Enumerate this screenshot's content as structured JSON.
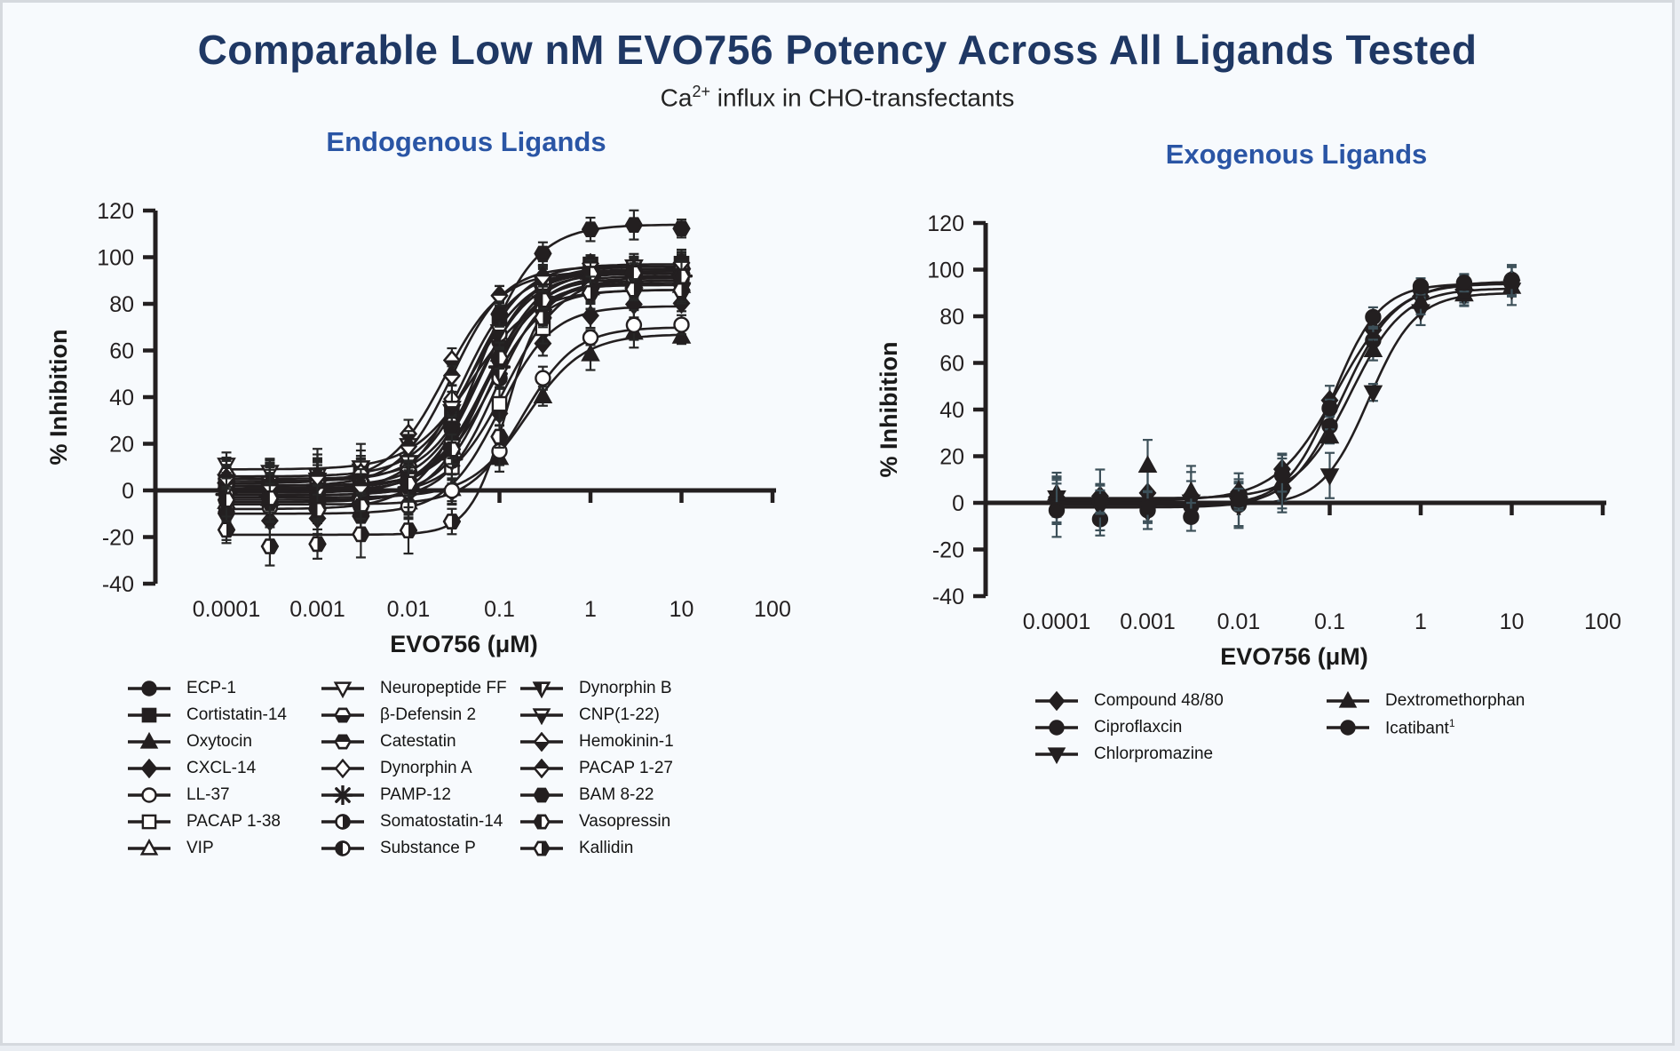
{
  "theme": {
    "background": "#f7fafd",
    "frame_border": "#d5d9de",
    "title_color": "#1f3864",
    "section_title_color": "#2a55a5",
    "curve_color": "#231f20",
    "axis_color": "#231f20",
    "tick_label_color": "#231f20"
  },
  "header": {
    "title": "Comparable Low nM EVO756 Potency Across All Ligands Tested",
    "subtitle_prefix": "Ca",
    "subtitle_sup": "2+",
    "subtitle_rest": " influx in CHO-transfectants"
  },
  "chart_data": [
    {
      "type": "line",
      "title": "Endogenous Ligands",
      "xlabel": "EVO756 (μM)",
      "ylabel": "% Inhibition",
      "x_scale": "log10",
      "xlim_log": [
        -4,
        2
      ],
      "ylim": [
        -40,
        120
      ],
      "y_ticks": [
        120,
        100,
        80,
        60,
        40,
        20,
        0,
        -20,
        -40
      ],
      "x_tick_labels": [
        "0.0001",
        "0.001",
        "0.01",
        "0.1",
        "1",
        "10",
        "100"
      ],
      "grid": false,
      "model": "4PL sigmoid: y = bottom + (top-bottom)/(1+(ec50/x)^hill); points at x_values_uM",
      "x_values_uM": [
        0.0001,
        0.0003,
        0.001,
        0.003,
        0.01,
        0.03,
        0.1,
        0.3,
        1,
        3,
        10
      ],
      "errbar_color": "#262626",
      "series": [
        {
          "name": "ECP-1",
          "marker": "circle_filled",
          "bottom": 2,
          "top": 95,
          "ec50_uM": 0.06,
          "hill": 1.5
        },
        {
          "name": "Cortistatin-14",
          "marker": "square_filled",
          "bottom": 4,
          "top": 97,
          "ec50_uM": 0.05,
          "hill": 1.5
        },
        {
          "name": "Oxytocin",
          "marker": "tri_up_filled",
          "bottom": -3,
          "top": 67,
          "ec50_uM": 0.2,
          "hill": 1.4
        },
        {
          "name": "CXCL-14",
          "marker": "diamond_filled",
          "bottom": -10,
          "top": 79,
          "ec50_uM": 0.1,
          "hill": 1.5,
          "point_overrides": {
            "1": -13,
            "2": -12
          },
          "err_overrides": {
            "1": 9,
            "2": 9
          }
        },
        {
          "name": "LL-37",
          "marker": "circle_open",
          "bottom": -6,
          "top": 70,
          "ec50_uM": 0.18,
          "hill": 1.5
        },
        {
          "name": "PACAP 1-38",
          "marker": "square_open",
          "bottom": -2,
          "top": 92,
          "ec50_uM": 0.12,
          "hill": 1.4
        },
        {
          "name": "VIP",
          "marker": "tri_up_open",
          "bottom": 0,
          "top": 89,
          "ec50_uM": 0.07,
          "hill": 1.5
        },
        {
          "name": "Neuropeptide FF",
          "marker": "tri_down_open",
          "bottom": 9,
          "top": 86,
          "ec50_uM": 0.05,
          "hill": 1.3,
          "point_overrides": {
            "0": 11
          }
        },
        {
          "name": "β-Defensin 2",
          "marker": "hex_bottom",
          "bottom": 5,
          "top": 93,
          "ec50_uM": 0.06,
          "hill": 1.5
        },
        {
          "name": "Catestatin",
          "marker": "hex_top",
          "bottom": 1,
          "top": 91,
          "ec50_uM": 0.07,
          "hill": 1.5
        },
        {
          "name": "Dynorphin A",
          "marker": "diamond_open",
          "bottom": 0,
          "top": 94,
          "ec50_uM": 0.04,
          "hill": 1.5
        },
        {
          "name": "PAMP-12",
          "marker": "asterisk",
          "bottom": -2,
          "top": 92,
          "ec50_uM": 0.08,
          "hill": 1.6
        },
        {
          "name": "Somatostatin-14",
          "marker": "circle_right",
          "bottom": -4,
          "top": 90,
          "ec50_uM": 0.09,
          "hill": 1.6
        },
        {
          "name": "Substance P",
          "marker": "circle_left",
          "bottom": -1,
          "top": 96,
          "ec50_uM": 0.06,
          "hill": 1.5
        },
        {
          "name": "Dynorphin B",
          "marker": "tri_down_left",
          "bottom": 2,
          "top": 86,
          "ec50_uM": 0.08,
          "hill": 1.5
        },
        {
          "name": "CNP(1-22)",
          "marker": "tri_down_bottom",
          "bottom": 6,
          "top": 94,
          "ec50_uM": 0.05,
          "hill": 1.4
        },
        {
          "name": "Hemokinin-1",
          "marker": "diamond_bottom",
          "bottom": 3,
          "top": 94,
          "ec50_uM": 0.025,
          "hill": 1.4
        },
        {
          "name": "PACAP 1-27",
          "marker": "diamond_top",
          "bottom": 2,
          "top": 96,
          "ec50_uM": 0.03,
          "hill": 1.5
        },
        {
          "name": "BAM 8-22",
          "marker": "hex_filled",
          "bottom": -8,
          "top": 114,
          "ec50_uM": 0.06,
          "hill": 1.4,
          "point_overrides": {
            "3": -11
          },
          "err_overrides": {
            "3": 10
          }
        },
        {
          "name": "Vasopressin",
          "marker": "hex_left",
          "bottom": -5,
          "top": 94,
          "ec50_uM": 0.07,
          "hill": 1.5
        },
        {
          "name": "Kallidin",
          "marker": "hex_right",
          "bottom": -19,
          "top": 88,
          "ec50_uM": 0.12,
          "hill": 2.2,
          "point_overrides": {
            "1": -24,
            "2": -23
          }
        }
      ],
      "legend_columns": [
        [
          {
            "label": "ECP-1",
            "marker": "circle_filled"
          },
          {
            "label": "Cortistatin-14",
            "marker": "square_filled"
          },
          {
            "label": "Oxytocin",
            "marker": "tri_up_filled"
          },
          {
            "label": "CXCL-14",
            "marker": "diamond_filled"
          },
          {
            "label": "LL-37",
            "marker": "circle_open"
          },
          {
            "label": "PACAP 1-38",
            "marker": "square_open"
          },
          {
            "label": "VIP",
            "marker": "tri_up_open"
          }
        ],
        [
          {
            "label": "Neuropeptide FF",
            "marker": "tri_down_open"
          },
          {
            "label": "β-Defensin 2",
            "marker": "hex_bottom"
          },
          {
            "label": "Catestatin",
            "marker": "hex_top"
          },
          {
            "label": "Dynorphin A",
            "marker": "diamond_open"
          },
          {
            "label": "PAMP-12",
            "marker": "asterisk"
          },
          {
            "label": "Somatostatin-14",
            "marker": "circle_right"
          },
          {
            "label": "Substance P",
            "marker": "circle_left"
          }
        ],
        [
          {
            "label": "Dynorphin B",
            "marker": "tri_down_left"
          },
          {
            "label": "CNP(1-22)",
            "marker": "tri_down_bottom"
          },
          {
            "label": "Hemokinin-1",
            "marker": "diamond_bottom"
          },
          {
            "label": "PACAP 1-27",
            "marker": "diamond_top"
          },
          {
            "label": "BAM 8-22",
            "marker": "hex_filled"
          },
          {
            "label": "Vasopressin",
            "marker": "hex_left"
          },
          {
            "label": "Kallidin",
            "marker": "hex_right"
          }
        ]
      ]
    },
    {
      "type": "line",
      "title": "Exogenous Ligands",
      "xlabel": "EVO756 (μM)",
      "ylabel": "% Inhibition",
      "x_scale": "log10",
      "xlim_log": [
        -4,
        2
      ],
      "ylim": [
        -40,
        120
      ],
      "y_ticks": [
        120,
        100,
        80,
        60,
        40,
        20,
        0,
        -20,
        -40
      ],
      "x_tick_labels": [
        "0.0001",
        "0.001",
        "0.01",
        "0.1",
        "1",
        "10",
        "100"
      ],
      "grid": false,
      "model": "4PL sigmoid: y = bottom + (top-bottom)/(1+(ec50/x)^hill); points at x_values_uM",
      "x_values_uM": [
        0.0001,
        0.0003,
        0.001,
        0.003,
        0.01,
        0.03,
        0.1,
        0.3,
        1,
        3,
        10
      ],
      "errbar_color": "#3d5059",
      "series": [
        {
          "name": "Compound 48/80",
          "marker": "diamond_filled",
          "bottom": 1,
          "top": 95,
          "ec50_uM": 0.12,
          "hill": 1.3
        },
        {
          "name": "Ciproflaxcin",
          "marker": "circle_filled",
          "bottom": -2,
          "top": 94,
          "ec50_uM": 0.14,
          "hill": 1.5,
          "point_overrides": {
            "1": -7
          },
          "err_overrides": {
            "1": 7
          }
        },
        {
          "name": "Chlorpromazine",
          "marker": "tri_down_filled",
          "bottom": -1,
          "top": 90,
          "ec50_uM": 0.27,
          "hill": 1.7,
          "point_overrides": {
            "2": -4
          }
        },
        {
          "name": "Dextromethorphan",
          "marker": "tri_up_filled",
          "bottom": 2,
          "top": 92,
          "ec50_uM": 0.17,
          "hill": 1.5,
          "point_overrides": {
            "2": 16
          },
          "err_overrides": {
            "2": 11
          }
        },
        {
          "name": "Icatibant",
          "marker": "circle_filled",
          "bottom": -1,
          "top": 94,
          "ec50_uM": 0.11,
          "hill": 1.7,
          "point_overrides": {
            "3": -6
          },
          "err_overrides": {
            "3": 6
          }
        }
      ],
      "legend_columns": [
        [
          {
            "label": "Compound 48/80",
            "marker": "diamond_filled"
          },
          {
            "label": "Ciproflaxcin",
            "marker": "circle_filled"
          },
          {
            "label": "Chlorpromazine",
            "marker": "tri_down_filled"
          }
        ],
        [
          {
            "label": "Dextromethorphan",
            "marker": "tri_up_filled"
          },
          {
            "label": "Icatibant",
            "marker": "circle_filled",
            "sup": "1"
          }
        ]
      ]
    }
  ]
}
